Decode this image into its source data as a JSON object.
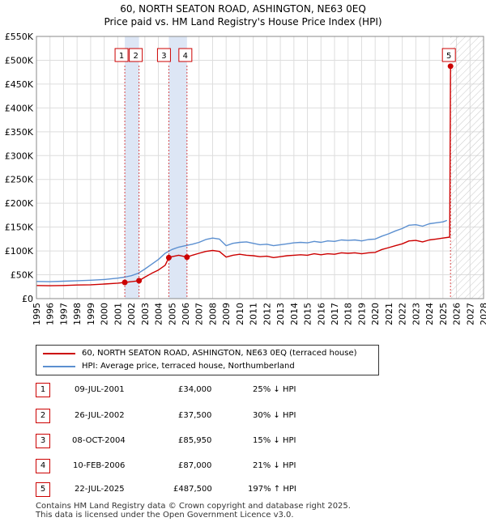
{
  "title": {
    "line1": "60, NORTH SEATON ROAD, ASHINGTON, NE63 0EQ",
    "line2": "Price paid vs. HM Land Registry's House Price Index (HPI)"
  },
  "chart_data": {
    "type": "line",
    "x_range": [
      1995,
      2028
    ],
    "ylim": [
      0,
      550000
    ],
    "y_ticks": [
      {
        "value": 0,
        "label": "£0"
      },
      {
        "value": 50000,
        "label": "£50K"
      },
      {
        "value": 100000,
        "label": "£100K"
      },
      {
        "value": 150000,
        "label": "£150K"
      },
      {
        "value": 200000,
        "label": "£200K"
      },
      {
        "value": 250000,
        "label": "£250K"
      },
      {
        "value": 300000,
        "label": "£300K"
      },
      {
        "value": 350000,
        "label": "£350K"
      },
      {
        "value": 400000,
        "label": "£400K"
      },
      {
        "value": 450000,
        "label": "£450K"
      },
      {
        "value": 500000,
        "label": "£500K"
      },
      {
        "value": 550000,
        "label": "£550K"
      }
    ],
    "x_ticks": [
      "1995",
      "1996",
      "1997",
      "1998",
      "1999",
      "2000",
      "2001",
      "2002",
      "2003",
      "2004",
      "2005",
      "2006",
      "2007",
      "2008",
      "2009",
      "2010",
      "2011",
      "2012",
      "2013",
      "2014",
      "2015",
      "2016",
      "2017",
      "2018",
      "2019",
      "2020",
      "2021",
      "2022",
      "2023",
      "2024",
      "2025",
      "2026",
      "2027",
      "2028"
    ],
    "grid": true,
    "future_hatch_from": 2025.55,
    "shaded_spans": [
      [
        2001.52,
        2002.57
      ],
      [
        2004.77,
        2006.11
      ]
    ],
    "series": [
      {
        "name": "HPI: Average price, terraced house, Northumberland",
        "color": "#5b8fd0",
        "points": [
          [
            1995,
            36000
          ],
          [
            1996,
            35500
          ],
          [
            1997,
            36500
          ],
          [
            1998,
            37500
          ],
          [
            1999,
            38500
          ],
          [
            2000,
            40000
          ],
          [
            2001,
            43000
          ],
          [
            2001.5,
            45000
          ],
          [
            2002,
            48000
          ],
          [
            2002.5,
            53000
          ],
          [
            2003,
            62000
          ],
          [
            2003.5,
            72000
          ],
          [
            2004,
            82000
          ],
          [
            2004.5,
            95000
          ],
          [
            2005,
            103000
          ],
          [
            2005.5,
            108000
          ],
          [
            2006,
            111000
          ],
          [
            2006.5,
            114000
          ],
          [
            2007,
            118000
          ],
          [
            2007.5,
            124000
          ],
          [
            2008,
            127000
          ],
          [
            2008.5,
            125000
          ],
          [
            2009,
            111000
          ],
          [
            2009.5,
            116000
          ],
          [
            2010,
            118000
          ],
          [
            2010.5,
            119000
          ],
          [
            2011,
            116000
          ],
          [
            2011.5,
            113000
          ],
          [
            2012,
            114000
          ],
          [
            2012.5,
            111000
          ],
          [
            2013,
            113000
          ],
          [
            2013.5,
            115000
          ],
          [
            2014,
            117000
          ],
          [
            2014.5,
            118000
          ],
          [
            2015,
            117000
          ],
          [
            2015.5,
            120000
          ],
          [
            2016,
            118000
          ],
          [
            2016.5,
            121000
          ],
          [
            2017,
            120000
          ],
          [
            2017.5,
            123000
          ],
          [
            2018,
            122000
          ],
          [
            2018.5,
            123000
          ],
          [
            2019,
            121000
          ],
          [
            2019.5,
            124000
          ],
          [
            2020,
            125000
          ],
          [
            2020.5,
            131000
          ],
          [
            2021,
            136000
          ],
          [
            2021.5,
            142000
          ],
          [
            2022,
            147000
          ],
          [
            2022.5,
            154000
          ],
          [
            2023,
            155000
          ],
          [
            2023.5,
            152000
          ],
          [
            2024,
            157000
          ],
          [
            2024.5,
            159000
          ],
          [
            2025,
            161000
          ],
          [
            2025.3,
            164000
          ]
        ]
      },
      {
        "name": "60, NORTH SEATON ROAD, ASHINGTON, NE63 0EQ (terraced house)",
        "color": "#cc0000",
        "points": [
          [
            1995,
            27500
          ],
          [
            1996,
            27000
          ],
          [
            1997,
            27500
          ],
          [
            1998,
            28500
          ],
          [
            1999,
            29000
          ],
          [
            2000,
            30500
          ],
          [
            2001,
            32500
          ],
          [
            2001.52,
            34000
          ],
          [
            2002,
            35500
          ],
          [
            2002.57,
            37500
          ],
          [
            2003,
            45000
          ],
          [
            2003.5,
            53000
          ],
          [
            2004,
            60000
          ],
          [
            2004.5,
            70000
          ],
          [
            2004.77,
            85950
          ],
          [
            2005,
            88000
          ],
          [
            2005.5,
            91000
          ],
          [
            2006.11,
            87000
          ],
          [
            2006.5,
            91000
          ],
          [
            2007,
            95000
          ],
          [
            2007.5,
            99000
          ],
          [
            2008,
            101000
          ],
          [
            2008.5,
            99000
          ],
          [
            2009,
            87000
          ],
          [
            2009.5,
            91000
          ],
          [
            2010,
            93000
          ],
          [
            2010.5,
            91000
          ],
          [
            2011,
            90000
          ],
          [
            2011.5,
            88000
          ],
          [
            2012,
            89000
          ],
          [
            2012.5,
            86000
          ],
          [
            2013,
            88000
          ],
          [
            2013.5,
            90000
          ],
          [
            2014,
            91000
          ],
          [
            2014.5,
            92000
          ],
          [
            2015,
            91000
          ],
          [
            2015.5,
            94000
          ],
          [
            2016,
            92000
          ],
          [
            2016.5,
            94000
          ],
          [
            2017,
            93000
          ],
          [
            2017.5,
            96000
          ],
          [
            2018,
            95000
          ],
          [
            2018.5,
            96000
          ],
          [
            2019,
            94000
          ],
          [
            2019.5,
            96000
          ],
          [
            2020,
            97000
          ],
          [
            2020.5,
            103000
          ],
          [
            2021,
            107000
          ],
          [
            2021.5,
            111000
          ],
          [
            2022,
            115000
          ],
          [
            2022.5,
            121000
          ],
          [
            2023,
            122000
          ],
          [
            2023.5,
            119000
          ],
          [
            2024,
            123000
          ],
          [
            2024.5,
            125000
          ],
          [
            2025,
            127000
          ],
          [
            2025.5,
            129000
          ],
          [
            2025.56,
            487500
          ]
        ]
      }
    ],
    "sales": [
      {
        "n": "1",
        "x": 2001.52,
        "price": 34000
      },
      {
        "n": "2",
        "x": 2002.57,
        "price": 37500
      },
      {
        "n": "3",
        "x": 2004.77,
        "price": 85950
      },
      {
        "n": "4",
        "x": 2006.11,
        "price": 87000
      },
      {
        "n": "5",
        "x": 2025.56,
        "price": 487500
      }
    ]
  },
  "legend": {
    "property_label": "60, NORTH SEATON ROAD, ASHINGTON, NE63 0EQ (terraced house)",
    "hpi_label": "HPI: Average price, terraced house, Northumberland",
    "property_color": "#cc0000",
    "hpi_color": "#5b8fd0"
  },
  "sales_table": [
    {
      "n": "1",
      "date": "09-JUL-2001",
      "price": "£34,000",
      "hpi": "25% ↓ HPI"
    },
    {
      "n": "2",
      "date": "26-JUL-2002",
      "price": "£37,500",
      "hpi": "30% ↓ HPI"
    },
    {
      "n": "3",
      "date": "08-OCT-2004",
      "price": "£85,950",
      "hpi": "15% ↓ HPI"
    },
    {
      "n": "4",
      "date": "10-FEB-2006",
      "price": "£87,000",
      "hpi": "21% ↓ HPI"
    },
    {
      "n": "5",
      "date": "22-JUL-2025",
      "price": "£487,500",
      "hpi": "197% ↑ HPI"
    }
  ],
  "footer": {
    "line1": "Contains HM Land Registry data © Crown copyright and database right 2025.",
    "line2": "This data is licensed under the Open Government Licence v3.0."
  }
}
